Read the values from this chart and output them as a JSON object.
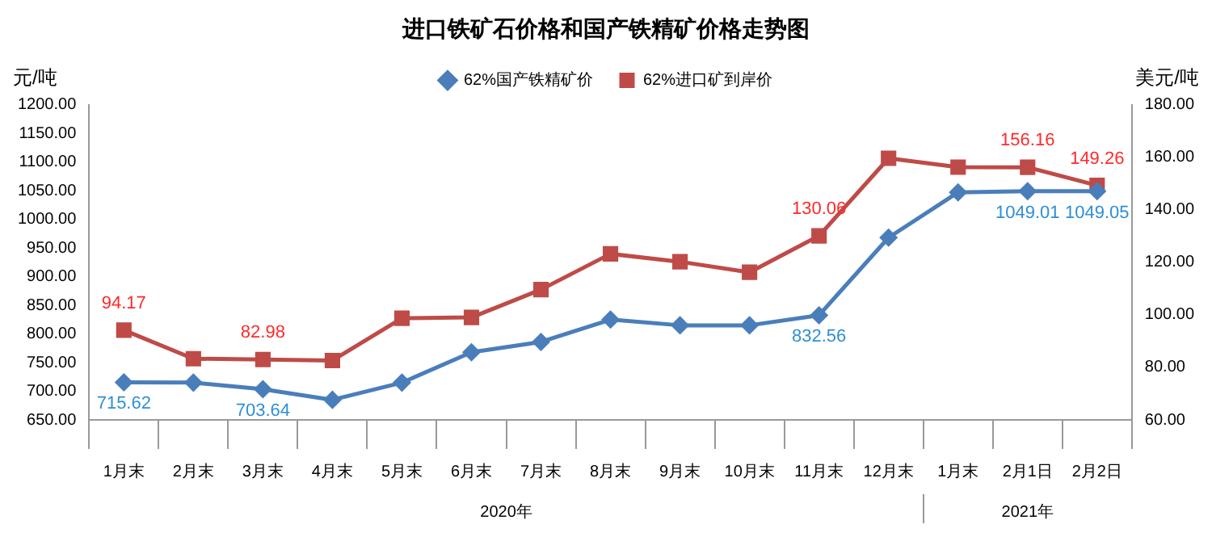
{
  "chart_data": {
    "type": "line",
    "title": "进口铁矿石价格和国产铁精矿价格走势图",
    "ylabel": "元/吨",
    "y2label": "美元/吨",
    "categories": [
      "1月末",
      "2月末",
      "3月末",
      "4月末",
      "5月末",
      "6月末",
      "7月末",
      "8月末",
      "9月末",
      "10月末",
      "11月末",
      "12月末",
      "1月末",
      "2月1日",
      "2月2日"
    ],
    "series": [
      {
        "name": "62%国产铁精矿价",
        "color": "#4a7ebb",
        "marker": "diamond",
        "values": [
          715.62,
          715,
          703.64,
          685,
          715,
          768,
          786,
          825,
          815,
          815,
          832.56,
          968,
          1047,
          1049.01,
          1049.05
        ],
        "value_labels": [
          "715.62",
          null,
          "703.64",
          null,
          null,
          null,
          null,
          null,
          null,
          null,
          "832.56",
          null,
          null,
          "1049.01",
          "1049.05"
        ]
      },
      {
        "name": "62%进口矿到岸价",
        "color": "#be4b48",
        "marker": "square",
        "axis": "y2",
        "values": [
          94.17,
          83.3,
          82.98,
          82.6,
          98.7,
          99,
          109.6,
          123.2,
          120.2,
          116.2,
          130.06,
          159.6,
          156.2,
          156.16,
          149.26
        ],
        "value_labels": [
          "94.17",
          null,
          "82.98",
          null,
          null,
          null,
          null,
          null,
          null,
          null,
          "130.06",
          null,
          null,
          "156.16",
          "149.26"
        ]
      }
    ],
    "ylim": [
      650,
      1200
    ],
    "yticks": [
      {
        "value": 650,
        "label": "650.00"
      },
      {
        "value": 700,
        "label": "700.00"
      },
      {
        "value": 750,
        "label": "750.00"
      },
      {
        "value": 800,
        "label": "800.00"
      },
      {
        "value": 850,
        "label": "850.00"
      },
      {
        "value": 900,
        "label": "900.00"
      },
      {
        "value": 950,
        "label": "950.00"
      },
      {
        "value": 1000,
        "label": "1000.00"
      },
      {
        "value": 1050,
        "label": "1050.00"
      },
      {
        "value": 1100,
        "label": "1100.00"
      },
      {
        "value": 1150,
        "label": "1150.00"
      },
      {
        "value": 1200,
        "label": "1200.00"
      }
    ],
    "y2lim": [
      60,
      180
    ],
    "y2ticks": [
      {
        "value": 60,
        "label": "60.00"
      },
      {
        "value": 80,
        "label": "80.00"
      },
      {
        "value": 100,
        "label": "100.00"
      },
      {
        "value": 120,
        "label": "120.00"
      },
      {
        "value": 140,
        "label": "140.00"
      },
      {
        "value": 160,
        "label": "160.00"
      },
      {
        "value": 180,
        "label": "180.00"
      }
    ],
    "annotations": [
      "2020年",
      "2021年"
    ],
    "legend": "top",
    "grid": false,
    "line_style": "solid"
  }
}
